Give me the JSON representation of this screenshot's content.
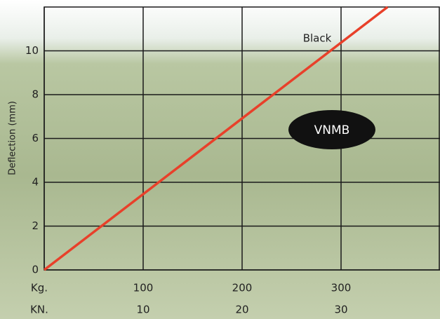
{
  "chart_data": {
    "type": "line",
    "y_label": "Deflection (mm)",
    "x": [
      0,
      347
    ],
    "series": [
      {
        "name": "Black",
        "color": "#e8402a",
        "values": [
          0,
          12
        ]
      }
    ],
    "xlim": [
      0,
      400
    ],
    "xticks": [
      {
        "value": 0,
        "label": "Kg."
      },
      100,
      200,
      300
    ],
    "kn_ticks": [
      {
        "value": 0,
        "label": "KN."
      },
      {
        "value": 100,
        "label": "10"
      },
      {
        "value": 200,
        "label": "20"
      },
      {
        "value": 300,
        "label": "30"
      }
    ],
    "ylim": [
      0,
      12
    ],
    "yticks": [
      0,
      2,
      4,
      6,
      8,
      10
    ],
    "grid": true,
    "badge": "VNMB"
  }
}
